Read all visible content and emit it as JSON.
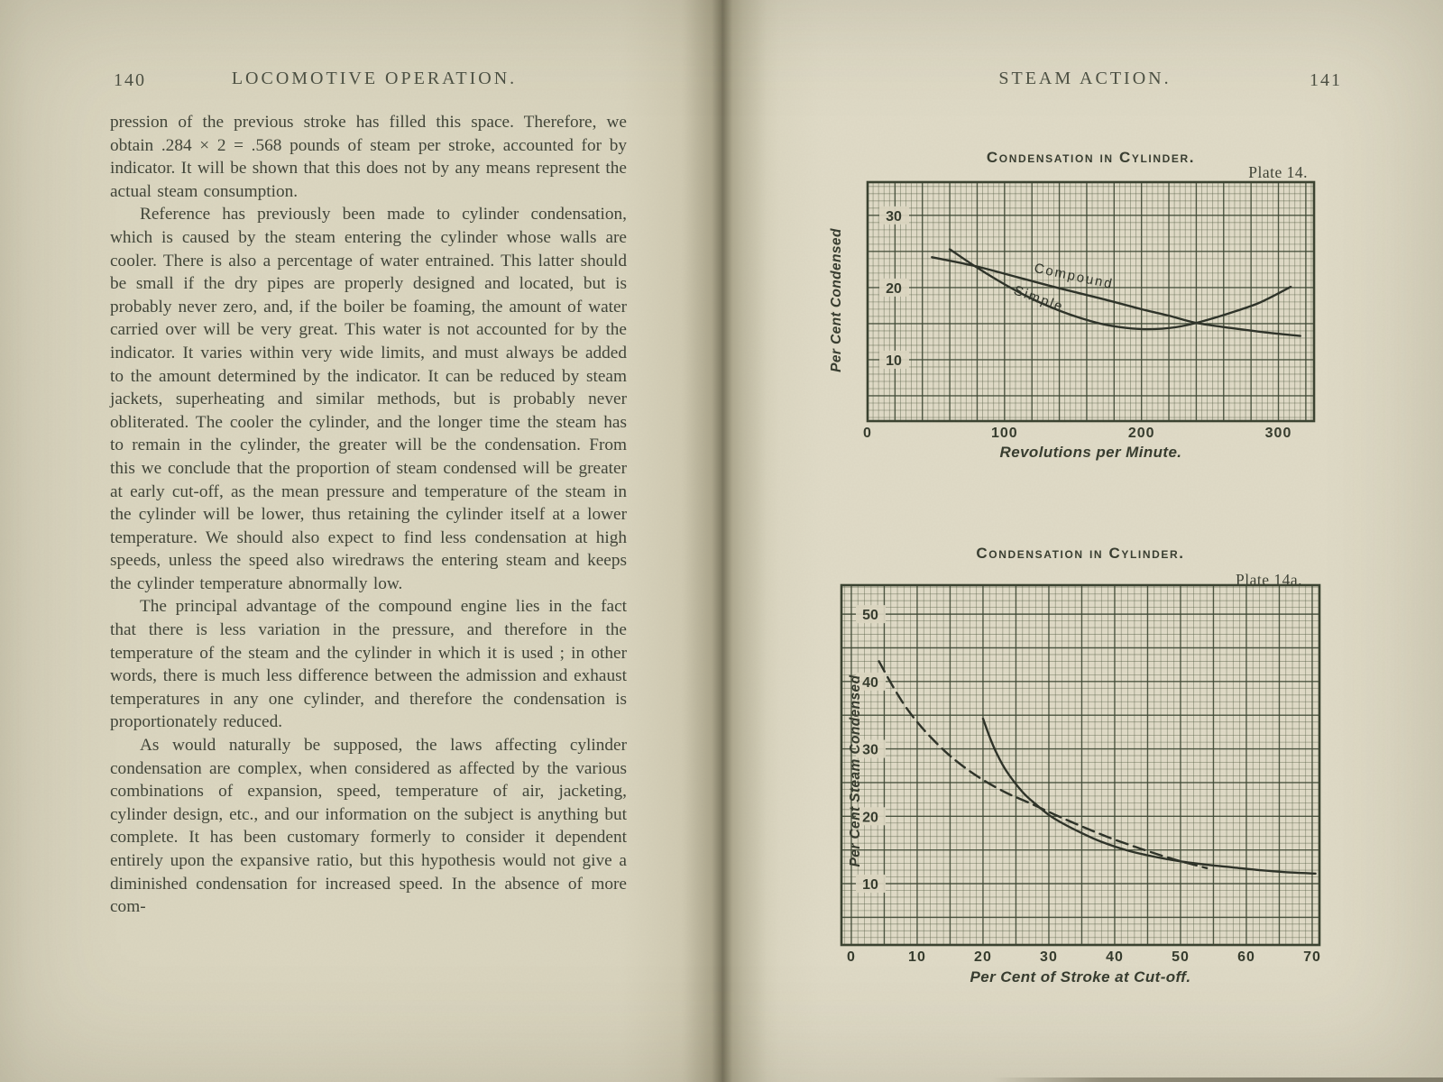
{
  "book_title_context": "scanned book spread",
  "left_page": {
    "page_number": "140",
    "running_title": "LOCOMOTIVE OPERATION.",
    "paragraphs": [
      "pression of the previous stroke has filled this space.  Therefore, we obtain .284 × 2 = .568 pounds of steam per stroke, accounted for by indicator.  It will be shown that this does not by any means represent the actual steam consumption.",
      "Reference has previously been made to cylinder condensation, which is caused by the steam entering the cylinder whose walls are cooler.  There is also a percentage of water entrained.  This latter should be small if the dry pipes are properly designed and located, but is probably never zero, and, if the boiler be foaming, the amount of water carried over will be very great.  This water is not accounted for by the indicator.  It varies within very wide limits, and must always be added to the amount determined by the indicator.  It can be reduced by steam jackets, superheating and similar methods, but is probably never obliterated.  The cooler the cylinder, and the longer time the steam has to remain in the cylinder, the greater will be the condensation.  From this we conclude that the proportion of steam condensed will be greater at early cut-off, as the mean pressure and temperature of the steam in the cylinder will be lower, thus retaining the cylinder itself at a lower temperature.  We should also expect to find less condensation at high speeds, unless the speed also wiredraws the entering steam and keeps the cylinder temperature abnormally low.",
      "The principal advantage of the compound engine lies in the fact that there is less variation in the pressure, and therefore in the temperature of the steam and the cylinder in which it is used ; in other words, there is much less difference between the admission and exhaust temperatures in any one cylinder, and therefore the condensation is proportionately reduced.",
      "As would naturally be supposed, the laws affecting cylinder condensation are complex, when considered as affected by the various combinations of expansion, speed, temperature of air, jacketing, cylinder design, etc., and our information on the subject is anything but complete.   It has been customary formerly to consider it dependent entirely upon the expansive ratio, but this hypothesis would not give a diminished condensation for increased speed.  In the absence of more com-"
    ]
  },
  "right_page": {
    "running_title": "STEAM ACTION.",
    "page_number": "141"
  },
  "colors": {
    "paper_left": "#dcd7c1",
    "paper_right": "#e0dbc7",
    "ink": "#3f4337",
    "grid_minor": "rgba(82,92,66,0.5)",
    "grid_major": "rgba(58,68,48,0.85)",
    "curve": "#2c3127"
  },
  "chart_data": [
    {
      "type": "line",
      "title": "Condensation in Cylinder.",
      "plate": "Plate 14.",
      "xlabel": "Revolutions per Minute.",
      "ylabel": "Per Cent Condensed",
      "x_ticks": [
        0,
        100,
        200,
        300
      ],
      "y_ticks": [
        30,
        20,
        10
      ],
      "layout": {
        "xmin": 0,
        "xmax": 326,
        "ymin": 1.5,
        "ymax": 34.6,
        "x_major": 20,
        "x_minor": 4,
        "y_major": 5,
        "y_minor": 1,
        "y_tick_inset": 29,
        "grid": "graph-paper",
        "legend": "inline-curve-labels"
      },
      "series": [
        {
          "name": "Compound",
          "style": "solid",
          "label": "Compound",
          "label_at": [
            150,
            21.0
          ],
          "label_angle": 12,
          "points": [
            [
              47,
              24.2
            ],
            [
              78,
              23.0
            ],
            [
              110,
              21.4
            ],
            [
              140,
              19.9
            ],
            [
              170,
              18.5
            ],
            [
              200,
              17.0
            ],
            [
              220,
              16.1
            ],
            [
              240,
              15.1
            ],
            [
              265,
              14.4
            ],
            [
              290,
              13.8
            ],
            [
              316,
              13.3
            ]
          ]
        },
        {
          "name": "Simple",
          "style": "solid",
          "label": "Simple",
          "label_at": [
            124,
            17.9
          ],
          "label_angle": 20,
          "points": [
            [
              60,
              25.3
            ],
            [
              78,
              23.0
            ],
            [
              95,
              21.0
            ],
            [
              110,
              19.4
            ],
            [
              125,
              18.0
            ],
            [
              140,
              16.8
            ],
            [
              155,
              15.8
            ],
            [
              170,
              15.0
            ],
            [
              185,
              14.5
            ],
            [
              200,
              14.25
            ],
            [
              215,
              14.3
            ],
            [
              228,
              14.6
            ],
            [
              240,
              15.1
            ],
            [
              255,
              15.9
            ],
            [
              270,
              16.8
            ],
            [
              285,
              17.8
            ],
            [
              297,
              18.9
            ],
            [
              309,
              20.1
            ]
          ]
        }
      ]
    },
    {
      "type": "line",
      "title": "Condensation in Cylinder.",
      "plate": "Plate 14a.",
      "xlabel": "Per Cent of Stroke at Cut-off.",
      "ylabel": "Per Cent Steam Condensed",
      "x_ticks": [
        0,
        10,
        20,
        30,
        40,
        50,
        60,
        70
      ],
      "y_ticks": [
        50,
        40,
        30,
        20,
        10
      ],
      "layout": {
        "xmin": -1.5,
        "xmax": 71.1,
        "ymin": 0.9,
        "ymax": 54.3,
        "x_major": 5,
        "x_minor": 1,
        "y_major": 5,
        "y_minor": 1,
        "y_tick_inset": 32,
        "grid": "graph-paper",
        "legend": "none"
      },
      "series": [
        {
          "name": "dashed-curve",
          "style": "dashed",
          "label": null,
          "points": [
            [
              4.2,
              43.0
            ],
            [
              6,
              39.8
            ],
            [
              8,
              36.6
            ],
            [
              10,
              34.0
            ],
            [
              12,
              31.8
            ],
            [
              14.5,
              29.4
            ],
            [
              17,
              27.4
            ],
            [
              20,
              25.4
            ],
            [
              23.5,
              23.5
            ],
            [
              27,
              22.0
            ],
            [
              31,
              20.2
            ],
            [
              35,
              18.5
            ],
            [
              39,
              16.9
            ],
            [
              43,
              15.5
            ],
            [
              47,
              14.2
            ],
            [
              50.5,
              13.2
            ],
            [
              54,
              12.3
            ]
          ]
        },
        {
          "name": "solid-curve",
          "style": "solid",
          "label": null,
          "points": [
            [
              20,
              34.5
            ],
            [
              21,
              31.8
            ],
            [
              22,
              29.5
            ],
            [
              23.5,
              26.8
            ],
            [
              26,
              23.6
            ],
            [
              28,
              21.8
            ],
            [
              30,
              20.2
            ],
            [
              32,
              19.0
            ],
            [
              35,
              17.5
            ],
            [
              38,
              16.2
            ],
            [
              42,
              14.9
            ],
            [
              46,
              14.0
            ],
            [
              50,
              13.3
            ],
            [
              54,
              12.8
            ],
            [
              58,
              12.4
            ],
            [
              62,
              12.0
            ],
            [
              66,
              11.7
            ],
            [
              70.5,
              11.5
            ]
          ]
        }
      ]
    }
  ]
}
